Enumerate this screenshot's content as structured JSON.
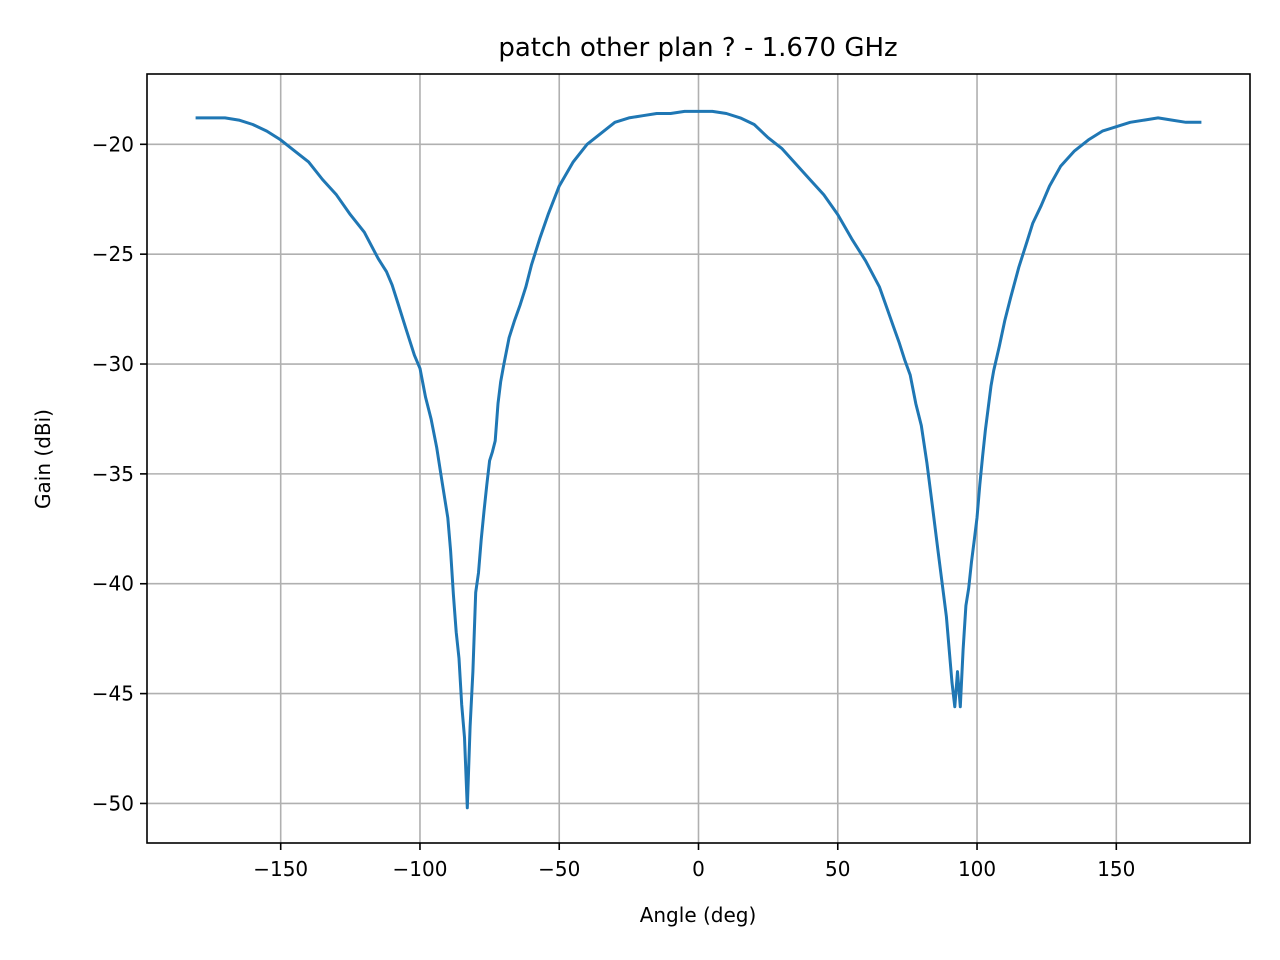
{
  "chart_data": {
    "type": "line",
    "title": "patch other plan ? - 1.670 GHz",
    "xlabel": "Angle (deg)",
    "ylabel": "Gain (dBi)",
    "xlim": [
      -198,
      198
    ],
    "ylim": [
      -51.8,
      -16.8
    ],
    "xticks": [
      -150,
      -100,
      -50,
      0,
      50,
      100,
      150
    ],
    "xtick_labels": [
      "−150",
      "−100",
      "−50",
      "0",
      "50",
      "100",
      "150"
    ],
    "yticks": [
      -20,
      -25,
      -30,
      -35,
      -40,
      -45,
      -50
    ],
    "ytick_labels": [
      "−20",
      "−25",
      "−30",
      "−35",
      "−40",
      "−45",
      "−50"
    ],
    "grid": true,
    "series": [
      {
        "color": "#1f77b4",
        "x": [
          -180,
          -175,
          -170,
          -165,
          -160,
          -155,
          -150,
          -145,
          -140,
          -135,
          -130,
          -125,
          -120,
          -115,
          -112,
          -110,
          -108,
          -105,
          -102,
          -100,
          -98,
          -96,
          -94,
          -92,
          -90,
          -89,
          -88,
          -87,
          -86,
          -85,
          -84,
          -83,
          -82,
          -81,
          -80,
          -79,
          -78,
          -77,
          -76,
          -75,
          -74,
          -73,
          -72,
          -71,
          -70,
          -68,
          -66,
          -64,
          -62,
          -60,
          -57,
          -54,
          -50,
          -45,
          -40,
          -35,
          -30,
          -25,
          -20,
          -15,
          -10,
          -5,
          0,
          5,
          10,
          15,
          20,
          25,
          30,
          35,
          40,
          45,
          50,
          55,
          60,
          65,
          70,
          72,
          74,
          76,
          78,
          80,
          82,
          84,
          86,
          88,
          89,
          90,
          91,
          92,
          93,
          94,
          95,
          96,
          97,
          98,
          99,
          100,
          101,
          102,
          103,
          104,
          105,
          106,
          108,
          110,
          112,
          115,
          118,
          120,
          123,
          126,
          130,
          135,
          140,
          145,
          150,
          155,
          160,
          165,
          170,
          175,
          180
        ],
        "y": [
          -18.8,
          -18.8,
          -18.8,
          -18.9,
          -19.1,
          -19.4,
          -19.8,
          -20.3,
          -20.8,
          -21.6,
          -22.3,
          -23.2,
          -24.0,
          -25.2,
          -25.8,
          -26.4,
          -27.2,
          -28.4,
          -29.6,
          -30.2,
          -31.5,
          -32.5,
          -33.8,
          -35.4,
          -37.0,
          -38.5,
          -40.5,
          -42.2,
          -43.4,
          -45.5,
          -47.0,
          -50.2,
          -46.5,
          -44.0,
          -40.4,
          -39.5,
          -38.0,
          -36.7,
          -35.5,
          -34.4,
          -34.0,
          -33.5,
          -31.8,
          -30.8,
          -30.1,
          -28.8,
          -28.0,
          -27.3,
          -26.5,
          -25.5,
          -24.3,
          -23.2,
          -21.9,
          -20.8,
          -20.0,
          -19.5,
          -19.0,
          -18.8,
          -18.7,
          -18.6,
          -18.6,
          -18.5,
          -18.5,
          -18.5,
          -18.6,
          -18.8,
          -19.1,
          -19.7,
          -20.2,
          -20.9,
          -21.6,
          -22.3,
          -23.2,
          -24.3,
          -25.3,
          -26.5,
          -28.3,
          -29.0,
          -29.8,
          -30.5,
          -31.8,
          -32.8,
          -34.5,
          -36.5,
          -38.5,
          -40.5,
          -41.5,
          -43.0,
          -44.5,
          -45.6,
          -44.0,
          -45.6,
          -43.0,
          -41.0,
          -40.2,
          -39.0,
          -38.0,
          -37.0,
          -35.5,
          -34.2,
          -33.0,
          -32.0,
          -31.0,
          -30.3,
          -29.2,
          -28.0,
          -27.0,
          -25.6,
          -24.4,
          -23.6,
          -22.8,
          -21.9,
          -21.0,
          -20.3,
          -19.8,
          -19.4,
          -19.2,
          -19.0,
          -18.9,
          -18.8,
          -18.9,
          -19.0,
          -19.0
        ]
      }
    ]
  }
}
